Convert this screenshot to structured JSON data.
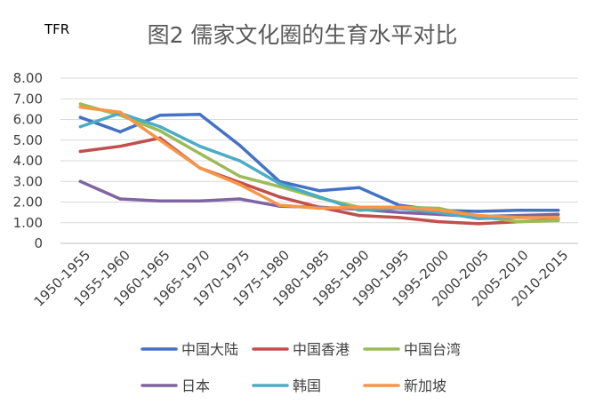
{
  "chart_data": {
    "type": "line",
    "title": "图2 儒家文化圈的生育水平对比",
    "ylabel": "TFR",
    "xlabel": "",
    "ylim": [
      0,
      8
    ],
    "y_ticks": [
      "0",
      "1.00",
      "2.00",
      "3.00",
      "4.00",
      "5.00",
      "6.00",
      "7.00",
      "8.00"
    ],
    "grid": true,
    "legend_position": "bottom",
    "categories": [
      "1950-1955",
      "1955-1960",
      "1960-1965",
      "1965-1970",
      "1970-1975",
      "1975-1980",
      "1980-1985",
      "1985-1990",
      "1990-1995",
      "1995-2000",
      "2000-2005",
      "2005-2010",
      "2010-2015"
    ],
    "series": [
      {
        "name": "中国大陆",
        "color": "#4472C4",
        "values": [
          6.1,
          5.4,
          6.2,
          6.25,
          4.75,
          3.0,
          2.55,
          2.7,
          1.85,
          1.6,
          1.55,
          1.6,
          1.6
        ]
      },
      {
        "name": "中国香港",
        "color": "#C0504D",
        "values": [
          4.45,
          4.7,
          5.1,
          3.65,
          2.95,
          2.25,
          1.75,
          1.35,
          1.25,
          1.05,
          0.95,
          1.05,
          1.15
        ]
      },
      {
        "name": "中国台湾",
        "color": "#9BBB59",
        "values": [
          6.75,
          6.2,
          5.45,
          4.35,
          3.25,
          2.75,
          2.2,
          1.75,
          1.75,
          1.7,
          1.3,
          1.05,
          1.1
        ]
      },
      {
        "name": "日本",
        "color": "#8064A2",
        "values": [
          3.0,
          2.15,
          2.05,
          2.05,
          2.15,
          1.8,
          1.75,
          1.65,
          1.5,
          1.4,
          1.3,
          1.35,
          1.4
        ]
      },
      {
        "name": "韩国",
        "color": "#4BACC6",
        "values": [
          5.65,
          6.3,
          5.65,
          4.7,
          4.0,
          2.9,
          2.25,
          1.6,
          1.7,
          1.5,
          1.2,
          1.25,
          1.25
        ]
      },
      {
        "name": "新加坡",
        "color": "#F79646",
        "values": [
          6.6,
          6.35,
          5.0,
          3.65,
          2.85,
          1.85,
          1.7,
          1.75,
          1.75,
          1.6,
          1.35,
          1.25,
          1.25
        ]
      }
    ]
  }
}
